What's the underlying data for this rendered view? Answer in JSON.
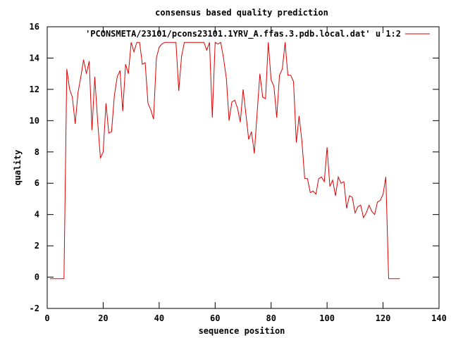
{
  "chart_data": {
    "type": "line",
    "title": "consensus based quality prediction",
    "xlabel": "sequence position",
    "ylabel": "quality",
    "xlim": [
      0,
      140
    ],
    "ylim": [
      -2,
      16
    ],
    "xticks": [
      0,
      20,
      40,
      60,
      80,
      100,
      120,
      140
    ],
    "yticks": [
      -2,
      0,
      2,
      4,
      6,
      8,
      10,
      12,
      14,
      16
    ],
    "grid": false,
    "legend_position": "top-right",
    "series": [
      {
        "name": "'PCONSMETA/23101/pcons23101.1YRV_A.ffas.3.pdb.local.dat' u 1:2",
        "color": "#dd0000",
        "x": [
          1,
          2,
          3,
          4,
          5,
          6,
          7,
          8,
          9,
          10,
          11,
          12,
          13,
          14,
          15,
          16,
          17,
          18,
          19,
          20,
          21,
          22,
          23,
          24,
          25,
          26,
          27,
          28,
          29,
          30,
          31,
          32,
          33,
          34,
          35,
          36,
          37,
          38,
          39,
          40,
          41,
          42,
          43,
          44,
          45,
          46,
          47,
          48,
          49,
          50,
          51,
          52,
          53,
          54,
          55,
          56,
          57,
          58,
          59,
          60,
          61,
          62,
          63,
          64,
          65,
          66,
          67,
          68,
          69,
          70,
          71,
          72,
          73,
          74,
          75,
          76,
          77,
          78,
          79,
          80,
          81,
          82,
          83,
          84,
          85,
          86,
          87,
          88,
          89,
          90,
          91,
          92,
          93,
          94,
          95,
          96,
          97,
          98,
          99,
          100,
          101,
          102,
          103,
          104,
          105,
          106,
          107,
          108,
          109,
          110,
          111,
          112,
          113,
          114,
          115,
          116,
          117,
          118,
          119,
          120,
          121,
          122,
          123,
          124,
          125,
          126
        ],
        "y": [
          -0.1,
          -0.1,
          -0.1,
          -0.1,
          -0.1,
          -0.1,
          13.3,
          12.0,
          11.5,
          9.8,
          11.8,
          12.8,
          13.9,
          13.0,
          13.8,
          9.4,
          12.8,
          10.0,
          7.6,
          8.0,
          11.1,
          9.2,
          9.3,
          11.6,
          12.8,
          13.2,
          10.6,
          13.6,
          13.0,
          15.0,
          14.4,
          15.0,
          15.0,
          13.6,
          13.7,
          11.1,
          10.7,
          10.1,
          14.0,
          14.7,
          14.9,
          15.0,
          15.0,
          15.0,
          15.0,
          15.0,
          11.9,
          14.1,
          15.0,
          15.0,
          15.0,
          15.0,
          15.0,
          15.0,
          15.0,
          15.0,
          14.5,
          15.0,
          10.2,
          15.0,
          14.9,
          15.0,
          14.0,
          12.7,
          10.0,
          11.2,
          11.3,
          10.8,
          9.9,
          12.0,
          10.4,
          8.8,
          9.3,
          7.9,
          10.5,
          13.0,
          11.5,
          11.4,
          15.0,
          12.6,
          12.2,
          10.2,
          12.9,
          13.3,
          15.0,
          12.9,
          12.9,
          12.5,
          8.6,
          10.3,
          8.7,
          6.3,
          6.3,
          5.4,
          5.5,
          5.3,
          6.3,
          6.4,
          6.1,
          8.3,
          5.8,
          6.2,
          5.2,
          6.4,
          6.0,
          6.1,
          4.4,
          5.2,
          5.1,
          4.1,
          4.5,
          4.6,
          3.8,
          4.1,
          4.6,
          4.2,
          4.0,
          4.8,
          4.9,
          5.3,
          6.4,
          -0.1,
          -0.1,
          -0.1,
          -0.1,
          -0.1
        ]
      }
    ]
  }
}
